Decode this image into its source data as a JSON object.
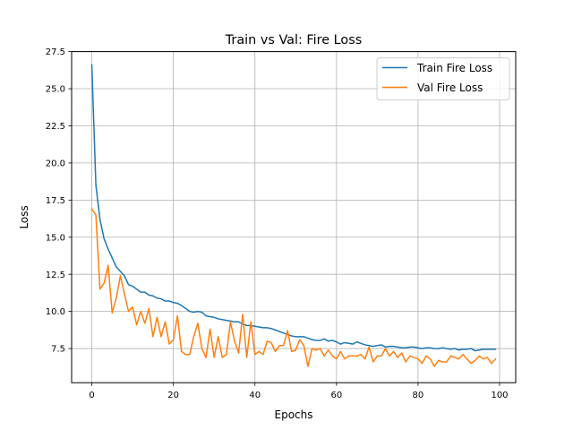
{
  "chart_data": {
    "type": "line",
    "title": "Train vs Val: Fire Loss",
    "xlabel": "Epochs",
    "ylabel": "Loss",
    "xlim": [
      -4.95,
      103.95
    ],
    "ylim": [
      5.2,
      27.5
    ],
    "xticks": [
      0,
      20,
      40,
      60,
      80,
      100
    ],
    "yticks": [
      7.5,
      10.0,
      12.5,
      15.0,
      17.5,
      20.0,
      22.5,
      25.0,
      27.5
    ],
    "ytick_labels": [
      "7.5",
      "10.0",
      "12.5",
      "15.0",
      "17.5",
      "20.0",
      "22.5",
      "25.0",
      "27.5"
    ],
    "grid": true,
    "legend": "upper right",
    "series": [
      {
        "name": "Train Fire Loss",
        "color": "#1f77b4",
        "values": [
          26.6,
          18.5,
          16.2,
          14.9,
          14.2,
          13.6,
          13.0,
          12.7,
          12.4,
          11.8,
          11.7,
          11.5,
          11.3,
          11.3,
          11.1,
          11.05,
          10.9,
          10.85,
          10.7,
          10.7,
          10.6,
          10.55,
          10.4,
          10.2,
          10.0,
          9.95,
          10.0,
          9.95,
          9.7,
          9.65,
          9.6,
          9.5,
          9.45,
          9.4,
          9.35,
          9.3,
          9.3,
          9.15,
          9.05,
          9.05,
          9.0,
          8.95,
          8.9,
          8.9,
          8.85,
          8.75,
          8.65,
          8.55,
          8.45,
          8.35,
          8.3,
          8.3,
          8.3,
          8.2,
          8.1,
          8.05,
          8.05,
          8.15,
          8.0,
          8.05,
          7.95,
          7.8,
          7.9,
          7.85,
          7.8,
          7.95,
          7.85,
          7.75,
          7.7,
          7.65,
          7.7,
          7.75,
          7.6,
          7.65,
          7.65,
          7.6,
          7.55,
          7.55,
          7.6,
          7.6,
          7.55,
          7.5,
          7.55,
          7.55,
          7.5,
          7.5,
          7.55,
          7.5,
          7.45,
          7.5,
          7.4,
          7.45,
          7.45,
          7.5,
          7.35,
          7.4,
          7.45,
          7.45,
          7.45,
          7.45
        ]
      },
      {
        "name": "Val Fire Loss",
        "color": "#ff7f0e",
        "values": [
          16.9,
          16.5,
          11.5,
          11.9,
          13.1,
          9.9,
          10.9,
          12.4,
          11.2,
          10.0,
          10.3,
          9.1,
          10.0,
          9.2,
          10.2,
          8.3,
          9.6,
          8.3,
          9.3,
          7.8,
          8.1,
          9.7,
          7.3,
          7.1,
          7.1,
          8.3,
          9.2,
          7.5,
          6.9,
          8.8,
          6.9,
          8.3,
          6.9,
          7.1,
          9.3,
          8.0,
          7.2,
          9.8,
          6.9,
          9.3,
          7.1,
          7.3,
          7.1,
          8.0,
          7.9,
          7.3,
          7.7,
          7.7,
          8.7,
          7.3,
          7.4,
          8.1,
          7.7,
          6.3,
          7.5,
          7.4,
          7.5,
          7.0,
          7.4,
          7.0,
          6.8,
          7.3,
          6.8,
          7.0,
          7.0,
          7.0,
          7.1,
          6.8,
          7.6,
          6.6,
          7.0,
          7.0,
          7.5,
          7.0,
          7.3,
          6.9,
          7.2,
          6.6,
          7.0,
          6.9,
          6.8,
          6.5,
          7.0,
          6.8,
          6.3,
          6.7,
          6.6,
          6.6,
          7.0,
          6.9,
          6.8,
          7.1,
          6.8,
          6.5,
          6.7,
          7.0,
          6.8,
          6.9,
          6.5,
          6.8
        ]
      }
    ]
  }
}
